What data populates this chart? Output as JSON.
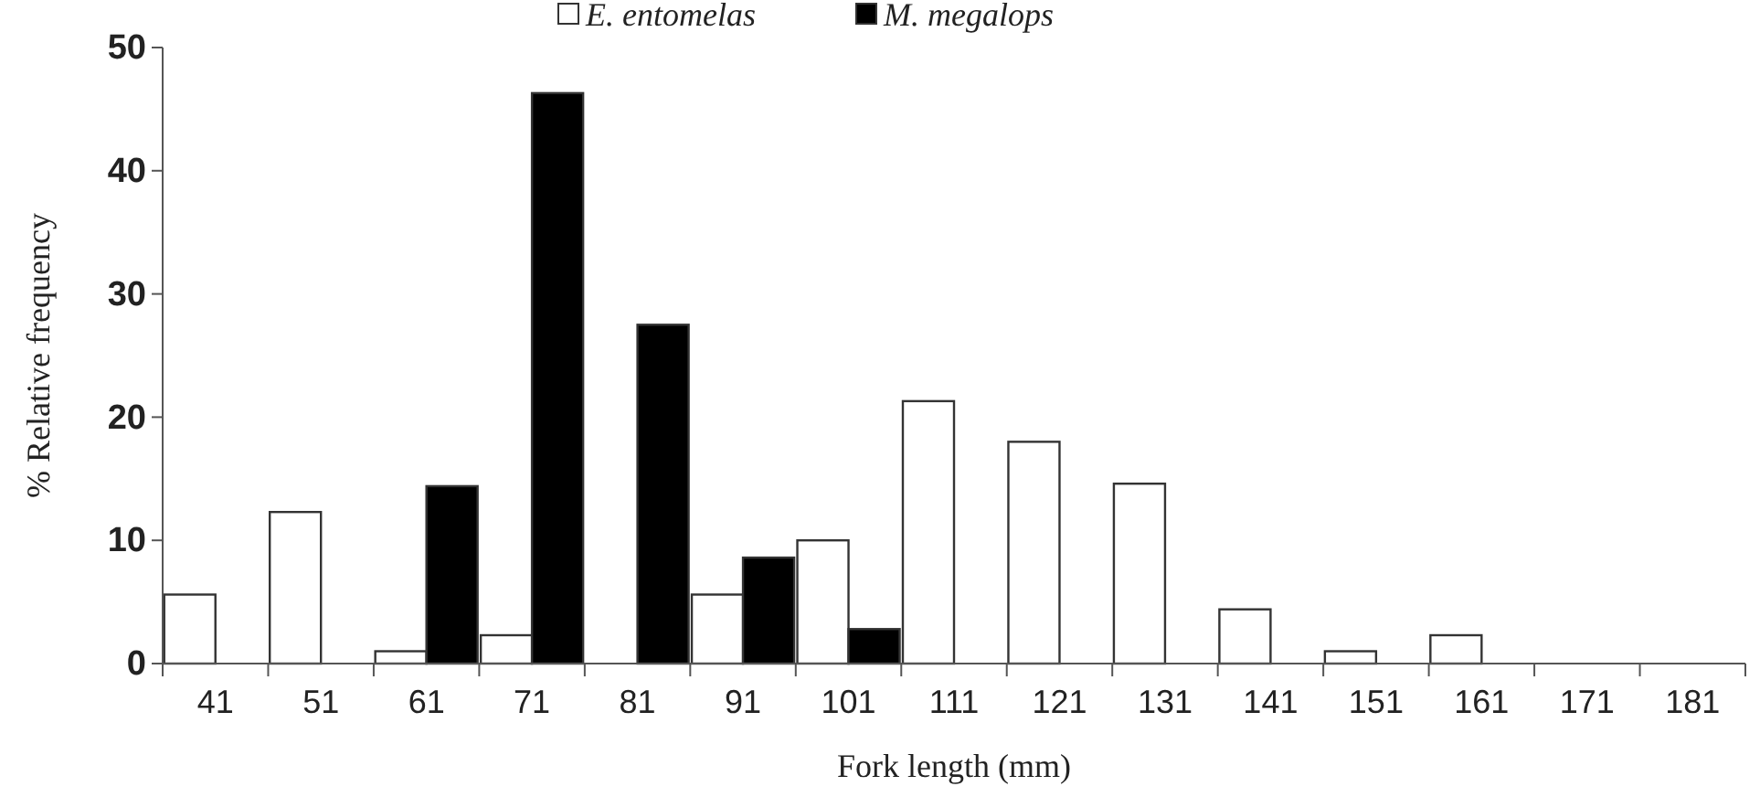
{
  "chart_data": {
    "type": "bar",
    "xlabel": "Fork length (mm)",
    "ylabel": "% Relative frequency",
    "categories": [
      "41",
      "51",
      "61",
      "71",
      "81",
      "91",
      "101",
      "111",
      "121",
      "131",
      "141",
      "151",
      "161",
      "171",
      "181"
    ],
    "series": [
      {
        "name": "E. entomelas",
        "color": "#ffffff",
        "values": [
          5.6,
          12.3,
          1.0,
          2.3,
          0,
          5.6,
          10.0,
          21.3,
          18.0,
          14.6,
          4.4,
          1.0,
          2.3,
          0,
          0
        ]
      },
      {
        "name": "M. megalops",
        "color": "#000000",
        "values": [
          0,
          0,
          14.4,
          46.3,
          27.5,
          8.6,
          2.8,
          0,
          0,
          0,
          0,
          0,
          0,
          0,
          0
        ]
      }
    ],
    "ylim": [
      0,
      50
    ],
    "yticks": [
      0,
      10,
      20,
      30,
      40,
      50
    ],
    "grid": false,
    "legend": "top"
  }
}
